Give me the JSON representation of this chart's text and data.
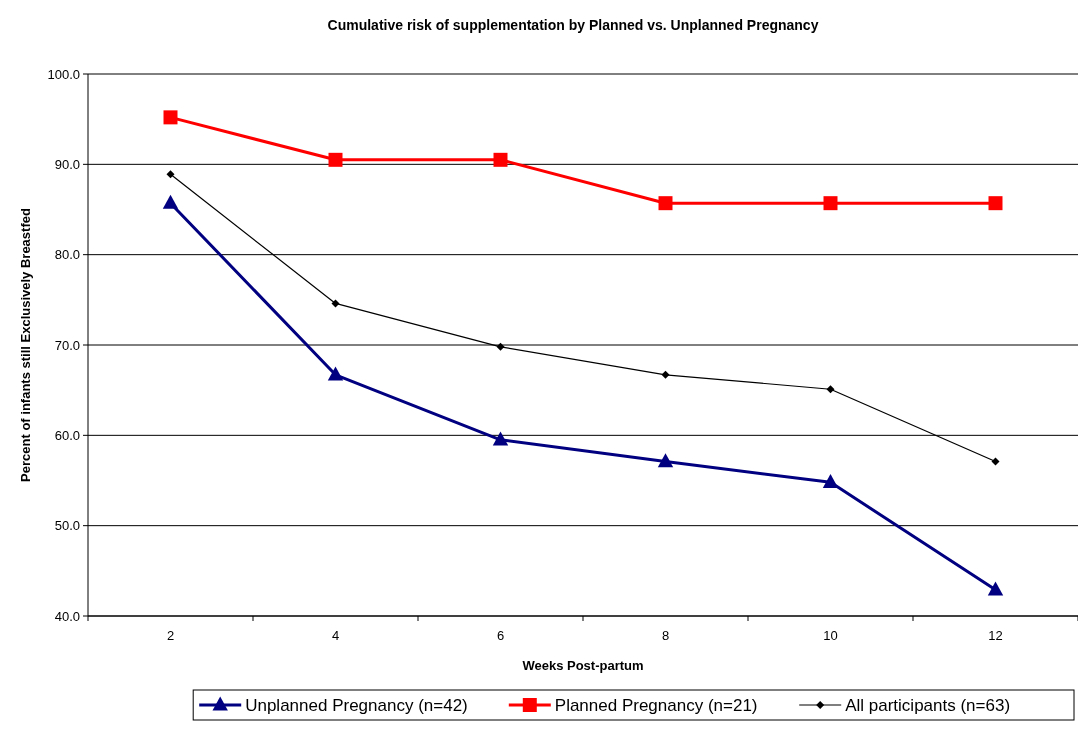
{
  "chart_data": {
    "type": "line",
    "title": "Cumulative risk of supplementation by Planned vs. Unplanned Pregnancy",
    "xlabel": "Weeks Post-partum",
    "ylabel": "Percent of infants still Exclusively Breastfed",
    "categories": [
      "2",
      "4",
      "6",
      "8",
      "10",
      "12"
    ],
    "series": [
      {
        "name": "Unplanned Pregnancy (n=42)",
        "color": "#000080",
        "marker": "triangle",
        "values": [
          85.7,
          66.7,
          59.5,
          57.1,
          54.8,
          42.9
        ]
      },
      {
        "name": "Planned Pregnancy (n=21)",
        "color": "#ff0000",
        "marker": "square",
        "values": [
          95.2,
          90.5,
          90.5,
          85.7,
          85.7,
          85.7
        ]
      },
      {
        "name": "All participants (n=63)",
        "color": "#000000",
        "marker": "diamond",
        "values": [
          88.9,
          74.6,
          69.8,
          66.7,
          65.1,
          57.1
        ]
      }
    ],
    "ylim": [
      40,
      100
    ],
    "yticks": [
      {
        "value": 40,
        "label": "40.0"
      },
      {
        "value": 50,
        "label": "50.0"
      },
      {
        "value": 60,
        "label": "60.0"
      },
      {
        "value": 70,
        "label": "70.0"
      },
      {
        "value": 80,
        "label": "80.0"
      },
      {
        "value": 90,
        "label": "90.0"
      },
      {
        "value": 100,
        "label": "100.0"
      }
    ],
    "grid": "y",
    "legend": "bottom",
    "line_style": "solid"
  }
}
